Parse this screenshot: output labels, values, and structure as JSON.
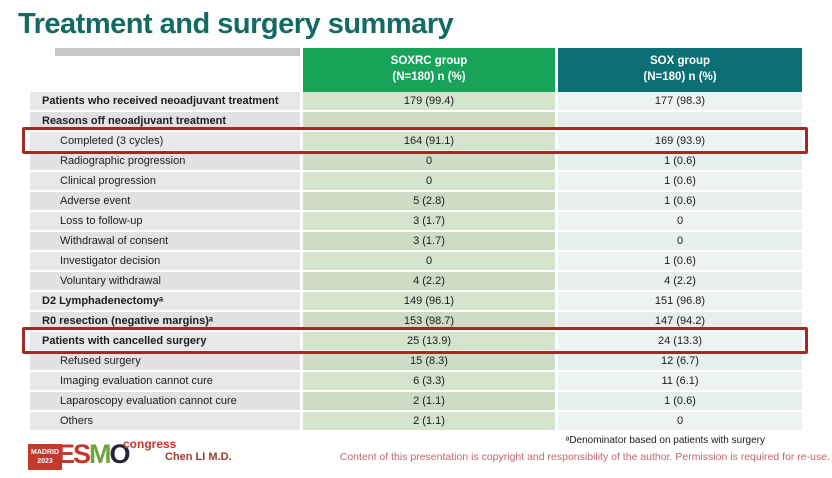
{
  "slide_title": "Treatment and surgery summary",
  "colors": {
    "title": "#136a63",
    "soxrc_header_bg": "#17a458",
    "sox_header_bg": "#0d6f76",
    "highlight_border": "#9d2c22",
    "soxrc_body_bg": "#d4e3cc",
    "sox_body_bg": "#ecf4f3",
    "label_body_bg": "#e9e7e7",
    "copyright_text": "#c4656d",
    "logo_red": "#c5382e"
  },
  "table": {
    "header": {
      "soxrc": {
        "line1": "SOXRC group",
        "line2": "(N=180)  n (%)"
      },
      "sox": {
        "line1": "SOX group",
        "line2": "(N=180)  n (%)"
      }
    },
    "rows": [
      {
        "label": "Patients who received neoadjuvant treatment",
        "soxrc": "179 (99.4)",
        "sox": "177 (98.3)",
        "bold": true,
        "indent": false,
        "highlight": false
      },
      {
        "label": "Reasons off neoadjuvant treatment",
        "soxrc": "",
        "sox": "",
        "bold": true,
        "indent": false,
        "highlight": false
      },
      {
        "label": "Completed (3 cycles)",
        "soxrc": "164 (91.1)",
        "sox": "169 (93.9)",
        "bold": false,
        "indent": true,
        "highlight": true
      },
      {
        "label": "Radiographic progression",
        "soxrc": "0",
        "sox": "1 (0.6)",
        "bold": false,
        "indent": true,
        "highlight": false
      },
      {
        "label": "Clinical progression",
        "soxrc": "0",
        "sox": "1 (0.6)",
        "bold": false,
        "indent": true,
        "highlight": false
      },
      {
        "label": "Adverse event",
        "soxrc": "5 (2.8)",
        "sox": "1 (0.6)",
        "bold": false,
        "indent": true,
        "highlight": false
      },
      {
        "label": "Loss to follow-up",
        "soxrc": "3 (1.7)",
        "sox": "0",
        "bold": false,
        "indent": true,
        "highlight": false
      },
      {
        "label": "Withdrawal of consent",
        "soxrc": "3 (1.7)",
        "sox": "0",
        "bold": false,
        "indent": true,
        "highlight": false
      },
      {
        "label": "Investigator decision",
        "soxrc": "0",
        "sox": "1 (0.6)",
        "bold": false,
        "indent": true,
        "highlight": false
      },
      {
        "label": "Voluntary withdrawal",
        "soxrc": "4 (2.2)",
        "sox": "4 (2.2)",
        "bold": false,
        "indent": true,
        "highlight": false
      },
      {
        "label": "D2 Lymphadenectomyᵃ",
        "soxrc": "149 (96.1)",
        "sox": "151 (96.8)",
        "bold": true,
        "indent": false,
        "highlight": false
      },
      {
        "label": "R0 resection (negative margins)ᵃ",
        "soxrc": "153 (98.7)",
        "sox": "147 (94.2)",
        "bold": true,
        "indent": false,
        "highlight": false
      },
      {
        "label": "Patients with cancelled surgery",
        "soxrc": "25 (13.9)",
        "sox": "24 (13.3)",
        "bold": true,
        "indent": false,
        "highlight": true
      },
      {
        "label": "Refused surgery",
        "soxrc": "15 (8.3)",
        "sox": "12 (6.7)",
        "bold": false,
        "indent": true,
        "highlight": false
      },
      {
        "label": "Imaging evaluation cannot cure",
        "soxrc": "6 (3.3)",
        "sox": "11 (6.1)",
        "bold": false,
        "indent": true,
        "highlight": false
      },
      {
        "label": "Laparoscopy evaluation cannot cure",
        "soxrc": "2 (1.1)",
        "sox": "1 (0.6)",
        "bold": false,
        "indent": true,
        "highlight": false
      },
      {
        "label": "Others",
        "soxrc": "2 (1.1)",
        "sox": "0",
        "bold": false,
        "indent": true,
        "highlight": false
      }
    ]
  },
  "footer": {
    "logo": {
      "madrid": "MADRID",
      "year": "2023",
      "esmo_es": "ES",
      "esmo_m": "M",
      "esmo_o": "O",
      "congress": "congress"
    },
    "author": "Chen LI M.D.",
    "footnote": "ᵃDenominator based on patients with surgery",
    "copyright": "Content of this presentation is copyright and responsibility of the author.  Permission is required for re-use."
  }
}
